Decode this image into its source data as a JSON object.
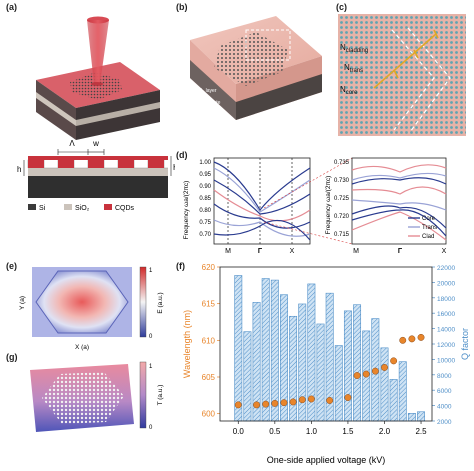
{
  "panels": {
    "a": "(a)",
    "b": "(b)",
    "c": "(c)",
    "d": "(d)",
    "e": "(e)",
    "f": "(f)",
    "g": "(g)"
  },
  "panel_a": {
    "labels": {
      "lambda": "Λ",
      "w": "w",
      "h": "h",
      "H": "H"
    },
    "legend": [
      {
        "label": "Si",
        "color": "#3a3a3a"
      },
      {
        "label": "SiO₂",
        "color": "#cbc3bb"
      },
      {
        "label": "CQDs",
        "color": "#c8323c"
      }
    ]
  },
  "panel_b": {
    "sio2_label": "SiO₂ layer",
    "si_label": "Si substrate"
  },
  "panel_c": {
    "labels": {
      "cladding": "N",
      "cladding_sub": "cladding",
      "trans": "N",
      "trans_sub": "trans",
      "core": "N",
      "core_sub": "core"
    }
  },
  "panel_d": {
    "ylabel": "Frequency ωa/(2πc)",
    "left_ticks": [
      "1.00",
      "0.95",
      "0.90",
      "0.85",
      "0.80",
      "0.75",
      "0.70"
    ],
    "left_xticks": [
      "M",
      "Γ",
      "X"
    ],
    "right_ticks": [
      "0.735",
      "0.730",
      "0.725",
      "0.720",
      "0.715"
    ],
    "right_xticks": [
      "M",
      "Γ",
      "X"
    ],
    "legend": [
      {
        "label": "Core",
        "color": "#2a3b8f"
      },
      {
        "label": "Trans",
        "color": "#9aa3d6"
      },
      {
        "label": "Clad",
        "color": "#e58c94"
      }
    ]
  },
  "panel_e": {
    "xlabel": "X (a)",
    "ylabel": "Y (a)",
    "cbar_label": "E (a.u.)",
    "cbar_max": "1",
    "cbar_min": "0"
  },
  "panel_g": {
    "cbar_label": "T (a.u.)",
    "cbar_max": "1",
    "cbar_min": "0"
  },
  "chart_data": {
    "type": "bar",
    "title": "",
    "xlabel": "One-side applied voltage (kV)",
    "ylabel_left": "Wavelength (nm)",
    "ylabel_right": "Q factor",
    "colors": {
      "wavelength": "#e8852b",
      "q": "#4f8fc8"
    },
    "xlim": [
      -0.25,
      2.65
    ],
    "xticks": [
      0.0,
      0.5,
      1.0,
      1.5,
      2.0,
      2.5
    ],
    "xtick_labels": [
      "0.0",
      "0.5",
      "1.0",
      "1.5",
      "2.0",
      "2.5"
    ],
    "ylim_left": [
      599,
      620
    ],
    "yticks_left": [
      600,
      605,
      610,
      615,
      620
    ],
    "ylim_right": [
      2000,
      22000
    ],
    "yticks_right": [
      2000,
      4000,
      6000,
      8000,
      10000,
      12000,
      14000,
      16000,
      18000,
      20000,
      22000
    ],
    "series": [
      {
        "name": "Q factor",
        "kind": "bar",
        "x": [
          0.0,
          0.125,
          0.25,
          0.375,
          0.5,
          0.625,
          0.75,
          0.875,
          1.0,
          1.125,
          1.25,
          1.375,
          1.5,
          1.625,
          1.75,
          1.875,
          2.0,
          2.125,
          2.25,
          2.375,
          2.5
        ],
        "values": [
          20900,
          13600,
          17400,
          20500,
          20300,
          18400,
          15600,
          17200,
          19800,
          14600,
          18600,
          11800,
          16300,
          17100,
          13700,
          15300,
          11500,
          7400,
          9700,
          3000,
          3200
        ]
      },
      {
        "name": "Wavelength",
        "kind": "scatter",
        "x": [
          0.0,
          0.25,
          0.375,
          0.5,
          0.625,
          0.75,
          0.875,
          1.0,
          1.25,
          1.5,
          1.625,
          1.75,
          1.875,
          2.0,
          2.125,
          2.25,
          2.375,
          2.5
        ],
        "values": [
          601.2,
          601.2,
          601.3,
          601.4,
          601.5,
          601.6,
          601.9,
          602.0,
          601.8,
          602.2,
          605.2,
          605.4,
          605.8,
          606.3,
          607.2,
          610.0,
          610.2,
          610.4
        ]
      }
    ]
  }
}
